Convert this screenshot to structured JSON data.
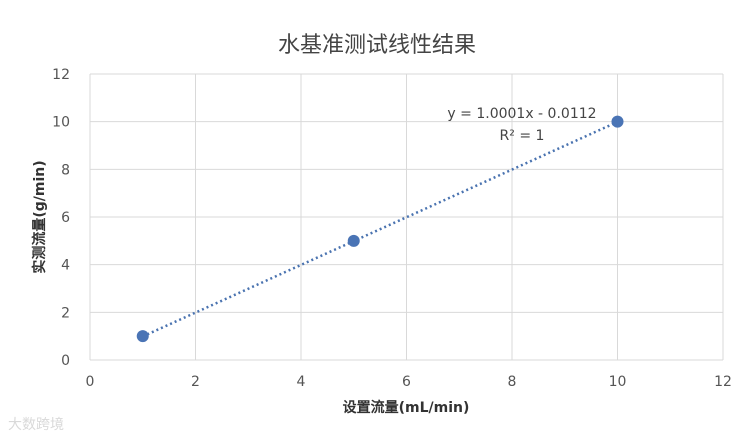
{
  "chart_data": {
    "type": "scatter",
    "title": "水基准测试线性结果",
    "xlabel": "设置流量(mL/min)",
    "ylabel": "实测流量(g/min)",
    "xlim": [
      0,
      12
    ],
    "ylim": [
      0,
      12
    ],
    "x_ticks": [
      0,
      2,
      4,
      6,
      8,
      10,
      12
    ],
    "y_ticks": [
      0,
      2,
      4,
      6,
      8,
      10,
      12
    ],
    "grid": true,
    "colors": {
      "point": "#4a74b5",
      "trendline": "#4a73b0",
      "grid": "#d9d9d9"
    },
    "series": [
      {
        "points": [
          {
            "x": 1,
            "y": 1
          },
          {
            "x": 5,
            "y": 5
          },
          {
            "x": 10,
            "y": 10
          }
        ]
      }
    ],
    "trendline": {
      "slope": 1.0001,
      "intercept": -0.0112,
      "x_range": [
        1,
        10
      ],
      "equation": "y = 1.0001x - 0.0112",
      "r_squared": "R² = 1"
    }
  },
  "watermark": "大数跨境"
}
